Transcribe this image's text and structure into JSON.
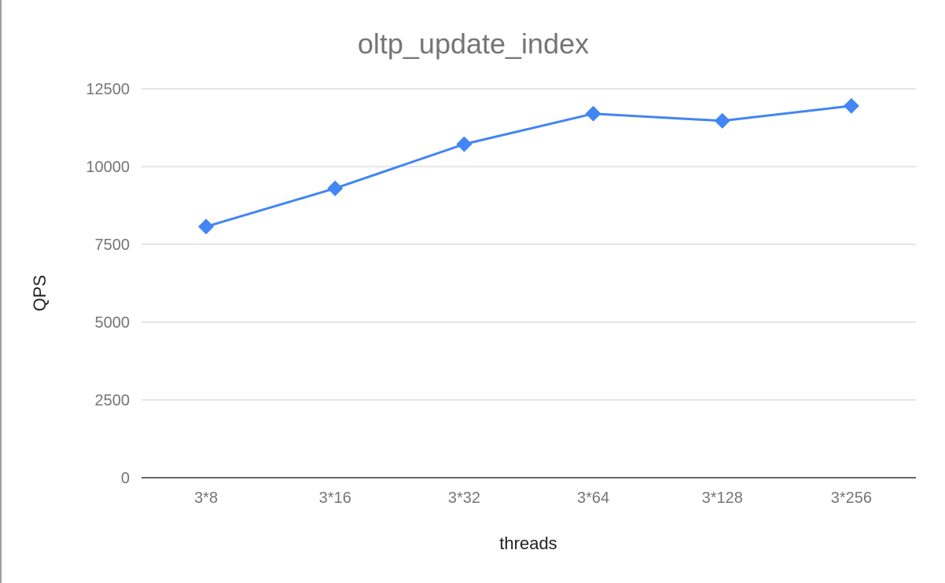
{
  "chart_data": {
    "type": "line",
    "title": "oltp_update_index",
    "xlabel": "threads",
    "ylabel": "QPS",
    "categories": [
      "3*8",
      "3*16",
      "3*32",
      "3*64",
      "3*128",
      "3*256"
    ],
    "series": [
      {
        "values": [
          8070,
          9300,
          10720,
          11700,
          11470,
          11950
        ],
        "color": "#4285f4",
        "marker": "diamond"
      }
    ],
    "ylim": [
      0,
      12500
    ],
    "yticks": [
      0,
      2500,
      5000,
      7500,
      10000,
      12500
    ],
    "grid": true,
    "legend": "none"
  }
}
